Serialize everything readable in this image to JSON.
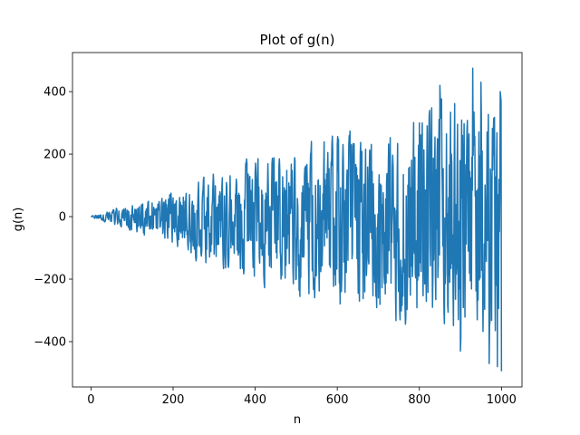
{
  "chart_data": {
    "type": "line",
    "title": "Plot of g(n)",
    "xlabel": "n",
    "ylabel": "g(n)",
    "xlim": [
      -45,
      1050
    ],
    "ylim": [
      -545,
      525
    ],
    "xticks": [
      0,
      200,
      400,
      600,
      800,
      1000
    ],
    "yticks": [
      -400,
      -200,
      0,
      200,
      400
    ],
    "xtick_labels": [
      "0",
      "200",
      "400",
      "600",
      "800",
      "1000"
    ],
    "ytick_labels": [
      "−400",
      "−200",
      "0",
      "200",
      "400"
    ],
    "grid": false,
    "legend": "none",
    "series": [
      {
        "color": "#1f77b4",
        "n_points": 1001,
        "x_range": [
          0,
          1000
        ],
        "envelope_upper": [
          [
            0,
            2
          ],
          [
            100,
            50
          ],
          [
            200,
            100
          ],
          [
            300,
            160
          ],
          [
            400,
            215
          ],
          [
            500,
            265
          ],
          [
            600,
            310
          ],
          [
            700,
            340
          ],
          [
            800,
            390
          ],
          [
            900,
            470
          ],
          [
            1000,
            400
          ]
        ],
        "envelope_lower": [
          [
            0,
            -2
          ],
          [
            100,
            -55
          ],
          [
            200,
            -110
          ],
          [
            300,
            -190
          ],
          [
            400,
            -250
          ],
          [
            500,
            -300
          ],
          [
            600,
            -330
          ],
          [
            700,
            -360
          ],
          [
            800,
            -420
          ],
          [
            900,
            -460
          ],
          [
            1000,
            -495
          ]
        ],
        "values_sampled": [
          [
            0,
            0
          ],
          [
            20,
            3
          ],
          [
            50,
            -15
          ],
          [
            100,
            20
          ],
          [
            150,
            -40
          ],
          [
            200,
            60
          ],
          [
            300,
            -120
          ],
          [
            400,
            140
          ],
          [
            500,
            -200
          ],
          [
            600,
            230
          ],
          [
            700,
            -260
          ],
          [
            800,
            300
          ],
          [
            850,
            420
          ],
          [
            900,
            -430
          ],
          [
            930,
            475
          ],
          [
            950,
            430
          ],
          [
            970,
            -470
          ],
          [
            990,
            -480
          ],
          [
            997,
            400
          ],
          [
            1000,
            -495
          ]
        ]
      }
    ]
  }
}
